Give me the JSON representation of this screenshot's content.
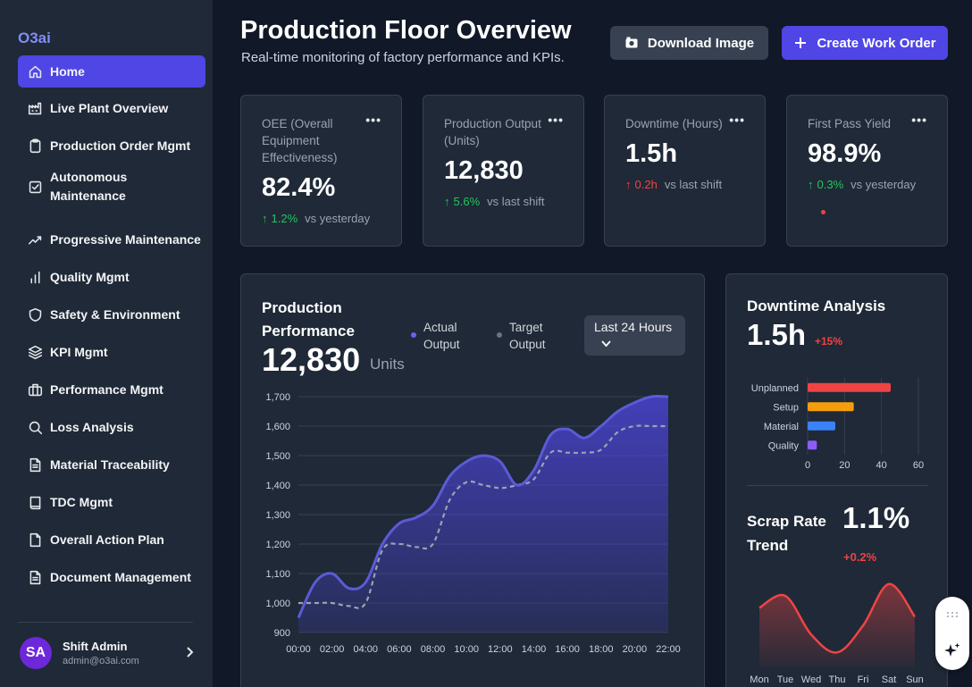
{
  "brand": "O3ai",
  "sidebar": {
    "items": [
      {
        "label": "Home",
        "icon": "home-icon"
      },
      {
        "label": "Live Plant Overview",
        "icon": "factory-icon"
      },
      {
        "label": "Production Order Mgmt",
        "icon": "clipboard-icon"
      },
      {
        "label": "Autonomous Maintenance",
        "icon": "checkbox-icon"
      },
      {
        "label": "Progressive Maintenance",
        "icon": "trend-up-icon"
      },
      {
        "label": "Quality Mgmt",
        "icon": "bar-chart-icon"
      },
      {
        "label": "Safety & Environment",
        "icon": "shield-icon"
      },
      {
        "label": "KPI Mgmt",
        "icon": "layers-icon"
      },
      {
        "label": "Performance Mgmt",
        "icon": "briefcase-icon"
      },
      {
        "label": "Loss Analysis",
        "icon": "search-icon"
      },
      {
        "label": "Material Traceability",
        "icon": "document-icon"
      },
      {
        "label": "TDC Mgmt",
        "icon": "book-icon"
      },
      {
        "label": "Overall Action Plan",
        "icon": "file-icon"
      },
      {
        "label": "Document Management",
        "icon": "document-icon"
      }
    ],
    "active_index": 0,
    "user": {
      "initials": "SA",
      "name": "Shift Admin",
      "email": "admin@o3ai.com"
    }
  },
  "header": {
    "title": "Production Floor Overview",
    "subtitle": "Real-time monitoring of factory performance and KPIs.",
    "download_label": "Download Image",
    "create_label": "Create Work Order"
  },
  "kpis": [
    {
      "label": "OEE (Overall Equipment Effectiveness)",
      "value": "82.4%",
      "direction": "up",
      "change": "1.2%",
      "compare": "vs yesterday"
    },
    {
      "label": "Production Output (Units)",
      "value": "12,830",
      "direction": "up",
      "change": "5.6%",
      "compare": "vs last shift"
    },
    {
      "label": "Downtime (Hours)",
      "value": "1.5h",
      "direction": "up",
      "change": "0.2h",
      "compare": "vs last shift"
    },
    {
      "label": "First Pass Yield",
      "value": "98.9%",
      "direction": "up",
      "change": "0.3%",
      "compare": "vs yesterday"
    }
  ],
  "performance": {
    "title": "Production Performance",
    "value": "12,830",
    "unit": "Units",
    "legend_actual": "Actual Output",
    "legend_target": "Target Output",
    "range": "Last 24 Hours"
  },
  "downtime": {
    "title": "Downtime Analysis",
    "value": "1.5h",
    "change": "+15%"
  },
  "scrap": {
    "title": "Scrap Rate Trend",
    "value": "1.1%",
    "change": "+0.2%"
  },
  "colors": {
    "accent": "#4f46e5",
    "actual": "#5b5bd6",
    "target": "#9ca3af",
    "up": "#22c55e",
    "down": "#ef4444"
  },
  "chart_data": [
    {
      "type": "area",
      "title": "Production Performance",
      "x": [
        "00:00",
        "01:00",
        "02:00",
        "03:00",
        "04:00",
        "05:00",
        "06:00",
        "07:00",
        "08:00",
        "09:00",
        "10:00",
        "11:00",
        "12:00",
        "13:00",
        "14:00",
        "15:00",
        "16:00",
        "17:00",
        "18:00",
        "19:00",
        "20:00",
        "21:00",
        "22:00"
      ],
      "xticks": [
        "00:00",
        "02:00",
        "04:00",
        "06:00",
        "08:00",
        "10:00",
        "12:00",
        "14:00",
        "16:00",
        "18:00",
        "20:00",
        "22:00"
      ],
      "series": [
        {
          "name": "Actual Output",
          "values": [
            950,
            1070,
            1100,
            1050,
            1070,
            1200,
            1270,
            1290,
            1330,
            1430,
            1480,
            1500,
            1480,
            1400,
            1450,
            1570,
            1590,
            1560,
            1600,
            1650,
            1680,
            1700,
            1700
          ]
        },
        {
          "name": "Target Output",
          "values": [
            1000,
            1000,
            1000,
            990,
            1000,
            1180,
            1200,
            1190,
            1200,
            1350,
            1410,
            1400,
            1390,
            1400,
            1420,
            1510,
            1510,
            1510,
            1520,
            1580,
            1600,
            1600,
            1600
          ]
        }
      ],
      "ylim": [
        900,
        1700
      ],
      "yticks": [
        900,
        1000,
        1100,
        1200,
        1300,
        1400,
        1500,
        1600,
        1700
      ],
      "grid": true
    },
    {
      "type": "bar",
      "orientation": "horizontal",
      "categories": [
        "Unplanned",
        "Setup",
        "Material",
        "Quality"
      ],
      "values": [
        45,
        25,
        15,
        5
      ],
      "colors": [
        "#ef4444",
        "#f59e0b",
        "#3b82f6",
        "#8b5cf6"
      ],
      "xlim": [
        0,
        60
      ],
      "xticks": [
        0,
        20,
        40,
        60
      ]
    },
    {
      "type": "area",
      "title": "Scrap Rate Trend",
      "categories": [
        "Mon",
        "Tue",
        "Wed",
        "Thu",
        "Fri",
        "Sat",
        "Sun"
      ],
      "values": [
        1.0,
        1.2,
        0.55,
        0.25,
        0.7,
        1.4,
        0.85
      ],
      "color": "#ef4444"
    }
  ]
}
